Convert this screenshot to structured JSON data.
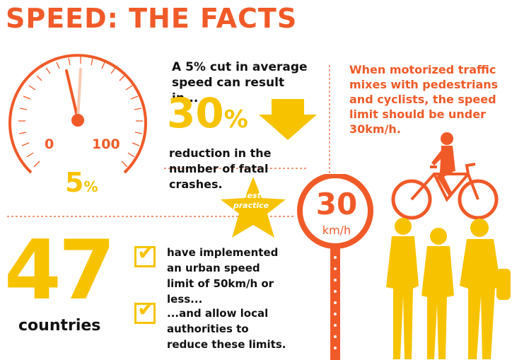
{
  "title": "SPEED: THE FACTS",
  "gauge": {
    "min_label": "0",
    "max_label": "100",
    "value_label": "5",
    "value_unit": "%"
  },
  "fact1": {
    "intro": "A 5% cut in average speed can result in...",
    "big_value": "30",
    "big_unit": "%",
    "reduction_text": "reduction in the number of fatal crashes."
  },
  "right": {
    "text": "When motorized traffic mixes with pedestrians and cyclists, the speed limit should be under 30km/h."
  },
  "badge": {
    "line1": "Best",
    "line2": "practice"
  },
  "sign": {
    "value": "30",
    "unit": "km/h"
  },
  "countries": {
    "value": "47",
    "label": "countries",
    "check1": "have implemented an urban speed limit of 50km/h or less...",
    "check2": "...and allow local authorities to reduce these limits."
  },
  "colors": {
    "orange": "#f05a28",
    "yellow": "#f7c300"
  }
}
